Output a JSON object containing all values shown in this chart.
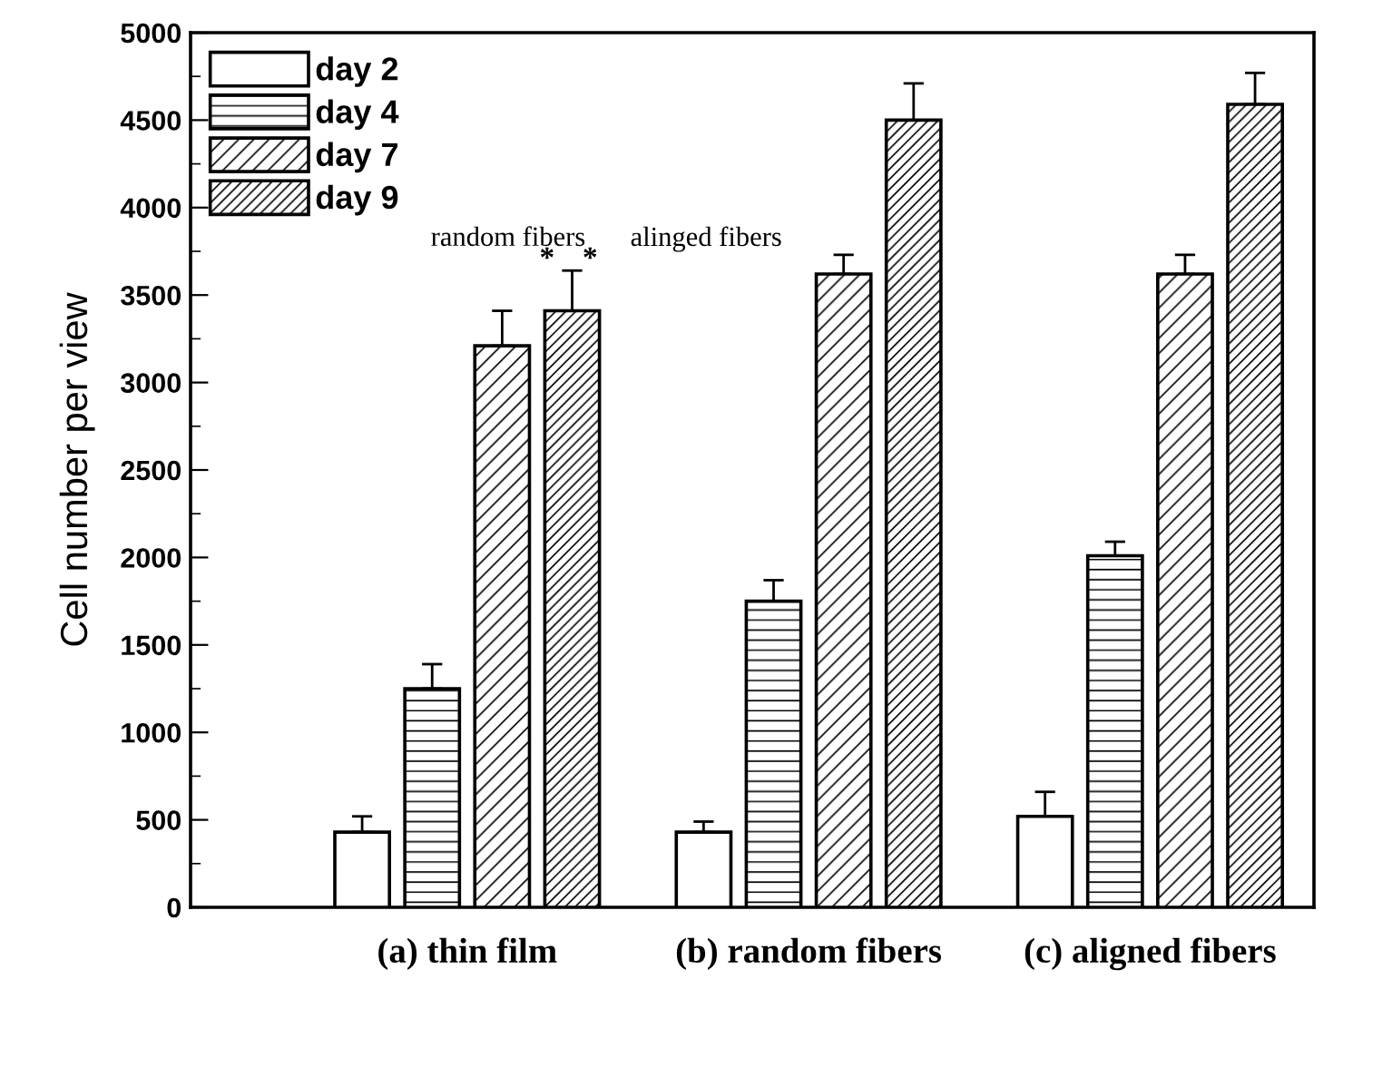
{
  "chart_data": {
    "type": "bar",
    "ylabel": "Cell number per view",
    "categories": [
      "(a) thin film",
      "(b) random fibers",
      "(c) aligned fibers"
    ],
    "series": [
      {
        "name": "day 2",
        "color": "#ffffff",
        "values": [
          430,
          430,
          520
        ],
        "errors": [
          [
            430,
            520
          ],
          [
            430,
            490
          ],
          [
            520,
            660
          ]
        ]
      },
      {
        "name": "day 4",
        "color": "#000000",
        "values": [
          1250,
          1750,
          2010
        ],
        "errors": [
          [
            1250,
            1390
          ],
          [
            1750,
            1870
          ],
          [
            2010,
            2090
          ]
        ]
      },
      {
        "name": "day 7",
        "color": "#000000",
        "values": [
          3210,
          3620,
          3620
        ],
        "errors": [
          [
            3210,
            3410
          ],
          [
            3620,
            3730
          ],
          [
            3620,
            3730
          ]
        ]
      },
      {
        "name": "day 9",
        "color": "#000000",
        "values": [
          3410,
          4500,
          4590
        ],
        "errors": [
          [
            3410,
            3640
          ],
          [
            4500,
            4710
          ],
          [
            4590,
            4770
          ]
        ]
      }
    ],
    "ylim": [
      0,
      5000
    ],
    "yticks": [
      0,
      500,
      1000,
      1500,
      2000,
      2500,
      3000,
      3500,
      4000,
      4500,
      5000
    ],
    "legend": "top left",
    "grid": false,
    "annotations": [
      "random fibers",
      "alinged fibers",
      "*",
      "*"
    ]
  }
}
